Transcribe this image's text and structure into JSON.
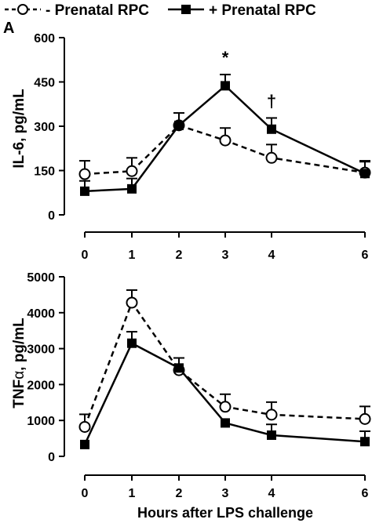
{
  "legend": {
    "minus_label": "- Prenatal RPC",
    "plus_label": "+ Prenatal RPC"
  },
  "colors": {
    "line": "#000000",
    "open_marker_fill": "#ffffff",
    "filled_marker": "#000000"
  },
  "chart_data": [
    {
      "type": "line",
      "panel_label": "A",
      "ylabel": "IL-6, pg/mL",
      "xlabel": "",
      "ylim": [
        0,
        600
      ],
      "yticks": [
        0,
        150,
        300,
        450,
        600
      ],
      "xticks": [
        0,
        1,
        2,
        3,
        4,
        6
      ],
      "grid": false,
      "legend": "top",
      "series": [
        {
          "name": "- Prenatal RPC",
          "marker": "open-circle",
          "line": "dashed",
          "x": [
            0,
            1,
            2,
            3,
            4,
            6
          ],
          "values": [
            138,
            148,
            303,
            252,
            193,
            143
          ],
          "error": [
            45,
            45,
            0,
            42,
            45,
            40
          ]
        },
        {
          "name": "+ Prenatal RPC",
          "marker": "filled-square",
          "line": "solid",
          "x": [
            0,
            1,
            2,
            3,
            4,
            6
          ],
          "values": [
            80,
            88,
            303,
            437,
            290,
            140
          ],
          "error": [
            35,
            35,
            42,
            38,
            38,
            40
          ]
        }
      ],
      "annotations": [
        {
          "text": "*",
          "x": 3
        },
        {
          "text": "†",
          "x": 4
        }
      ]
    },
    {
      "type": "line",
      "panel_label": "",
      "ylabel_main": "TNF",
      "ylabel_sub": "α",
      "ylabel_rest": ", pg/mL",
      "xlabel": "Hours after LPS challenge",
      "ylim": [
        0,
        5000
      ],
      "yticks": [
        0,
        1000,
        2000,
        3000,
        4000,
        5000
      ],
      "xticks": [
        0,
        1,
        2,
        3,
        4,
        6
      ],
      "grid": false,
      "series": [
        {
          "name": "- Prenatal RPC",
          "marker": "open-circle",
          "line": "dashed",
          "x": [
            0,
            1,
            2,
            3,
            4,
            6
          ],
          "values": [
            820,
            4280,
            2400,
            1380,
            1160,
            1040
          ],
          "error": [
            350,
            350,
            0,
            350,
            350,
            350
          ]
        },
        {
          "name": "+ Prenatal RPC",
          "marker": "filled-square",
          "line": "solid",
          "x": [
            0,
            1,
            2,
            3,
            4,
            6
          ],
          "values": [
            330,
            3150,
            2460,
            930,
            590,
            410
          ],
          "error": [
            0,
            320,
            280,
            0,
            300,
            290
          ]
        }
      ]
    }
  ]
}
